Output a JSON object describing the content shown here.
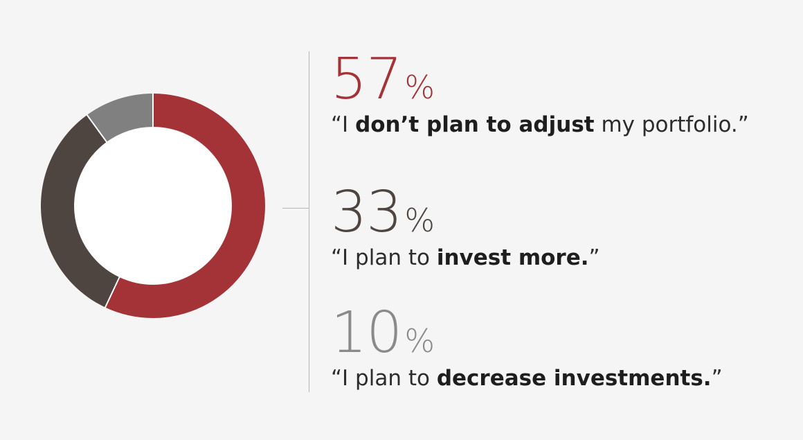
{
  "chart_data": {
    "type": "pie",
    "variant": "donut",
    "categories": [
      "“I don’t plan to adjust my portfolio.”",
      "“I plan to invest more.”",
      "“I plan to decrease investments.”"
    ],
    "values": [
      57,
      33,
      10
    ],
    "unit": "%",
    "colors": [
      "#a33336",
      "#4e4541",
      "#808080"
    ],
    "legend_placement": "right",
    "title": ""
  },
  "stats": [
    {
      "percent": "57",
      "unit": "%",
      "color": "#a33336",
      "quote_open": "“I ",
      "quote_bold": "don’t plan to adjust",
      "quote_close": " my portfolio.”"
    },
    {
      "percent": "33",
      "unit": "%",
      "color": "#4e4541",
      "quote_open": "“I plan to ",
      "quote_bold": "invest more.",
      "quote_close": "”"
    },
    {
      "percent": "10",
      "unit": "%",
      "color": "#8a8a8a",
      "quote_open": "“I plan to ",
      "quote_bold": "decrease investments.",
      "quote_close": "”"
    }
  ]
}
